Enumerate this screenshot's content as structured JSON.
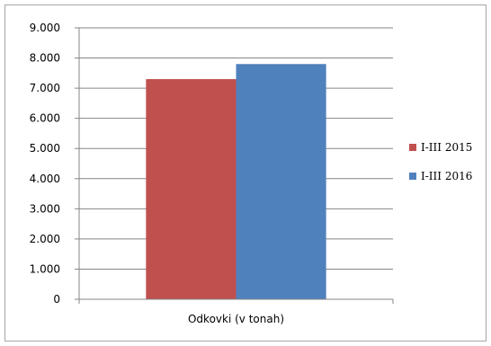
{
  "chart_data": {
    "type": "bar",
    "categories": [
      "Odkovki (v tonah)"
    ],
    "series": [
      {
        "name": "I-III 2015",
        "values": [
          7300
        ],
        "color": "#c0504d"
      },
      {
        "name": "I-III 2016",
        "values": [
          7800
        ],
        "color": "#4f81bd"
      }
    ],
    "ylim": [
      0,
      9000
    ],
    "yticks": [
      "0",
      "1.000",
      "2.000",
      "3.000",
      "4.000",
      "5.000",
      "6.000",
      "7.000",
      "8.000",
      "9.000"
    ],
    "grid": true,
    "legend": "right",
    "gridline_color": "#868686"
  }
}
